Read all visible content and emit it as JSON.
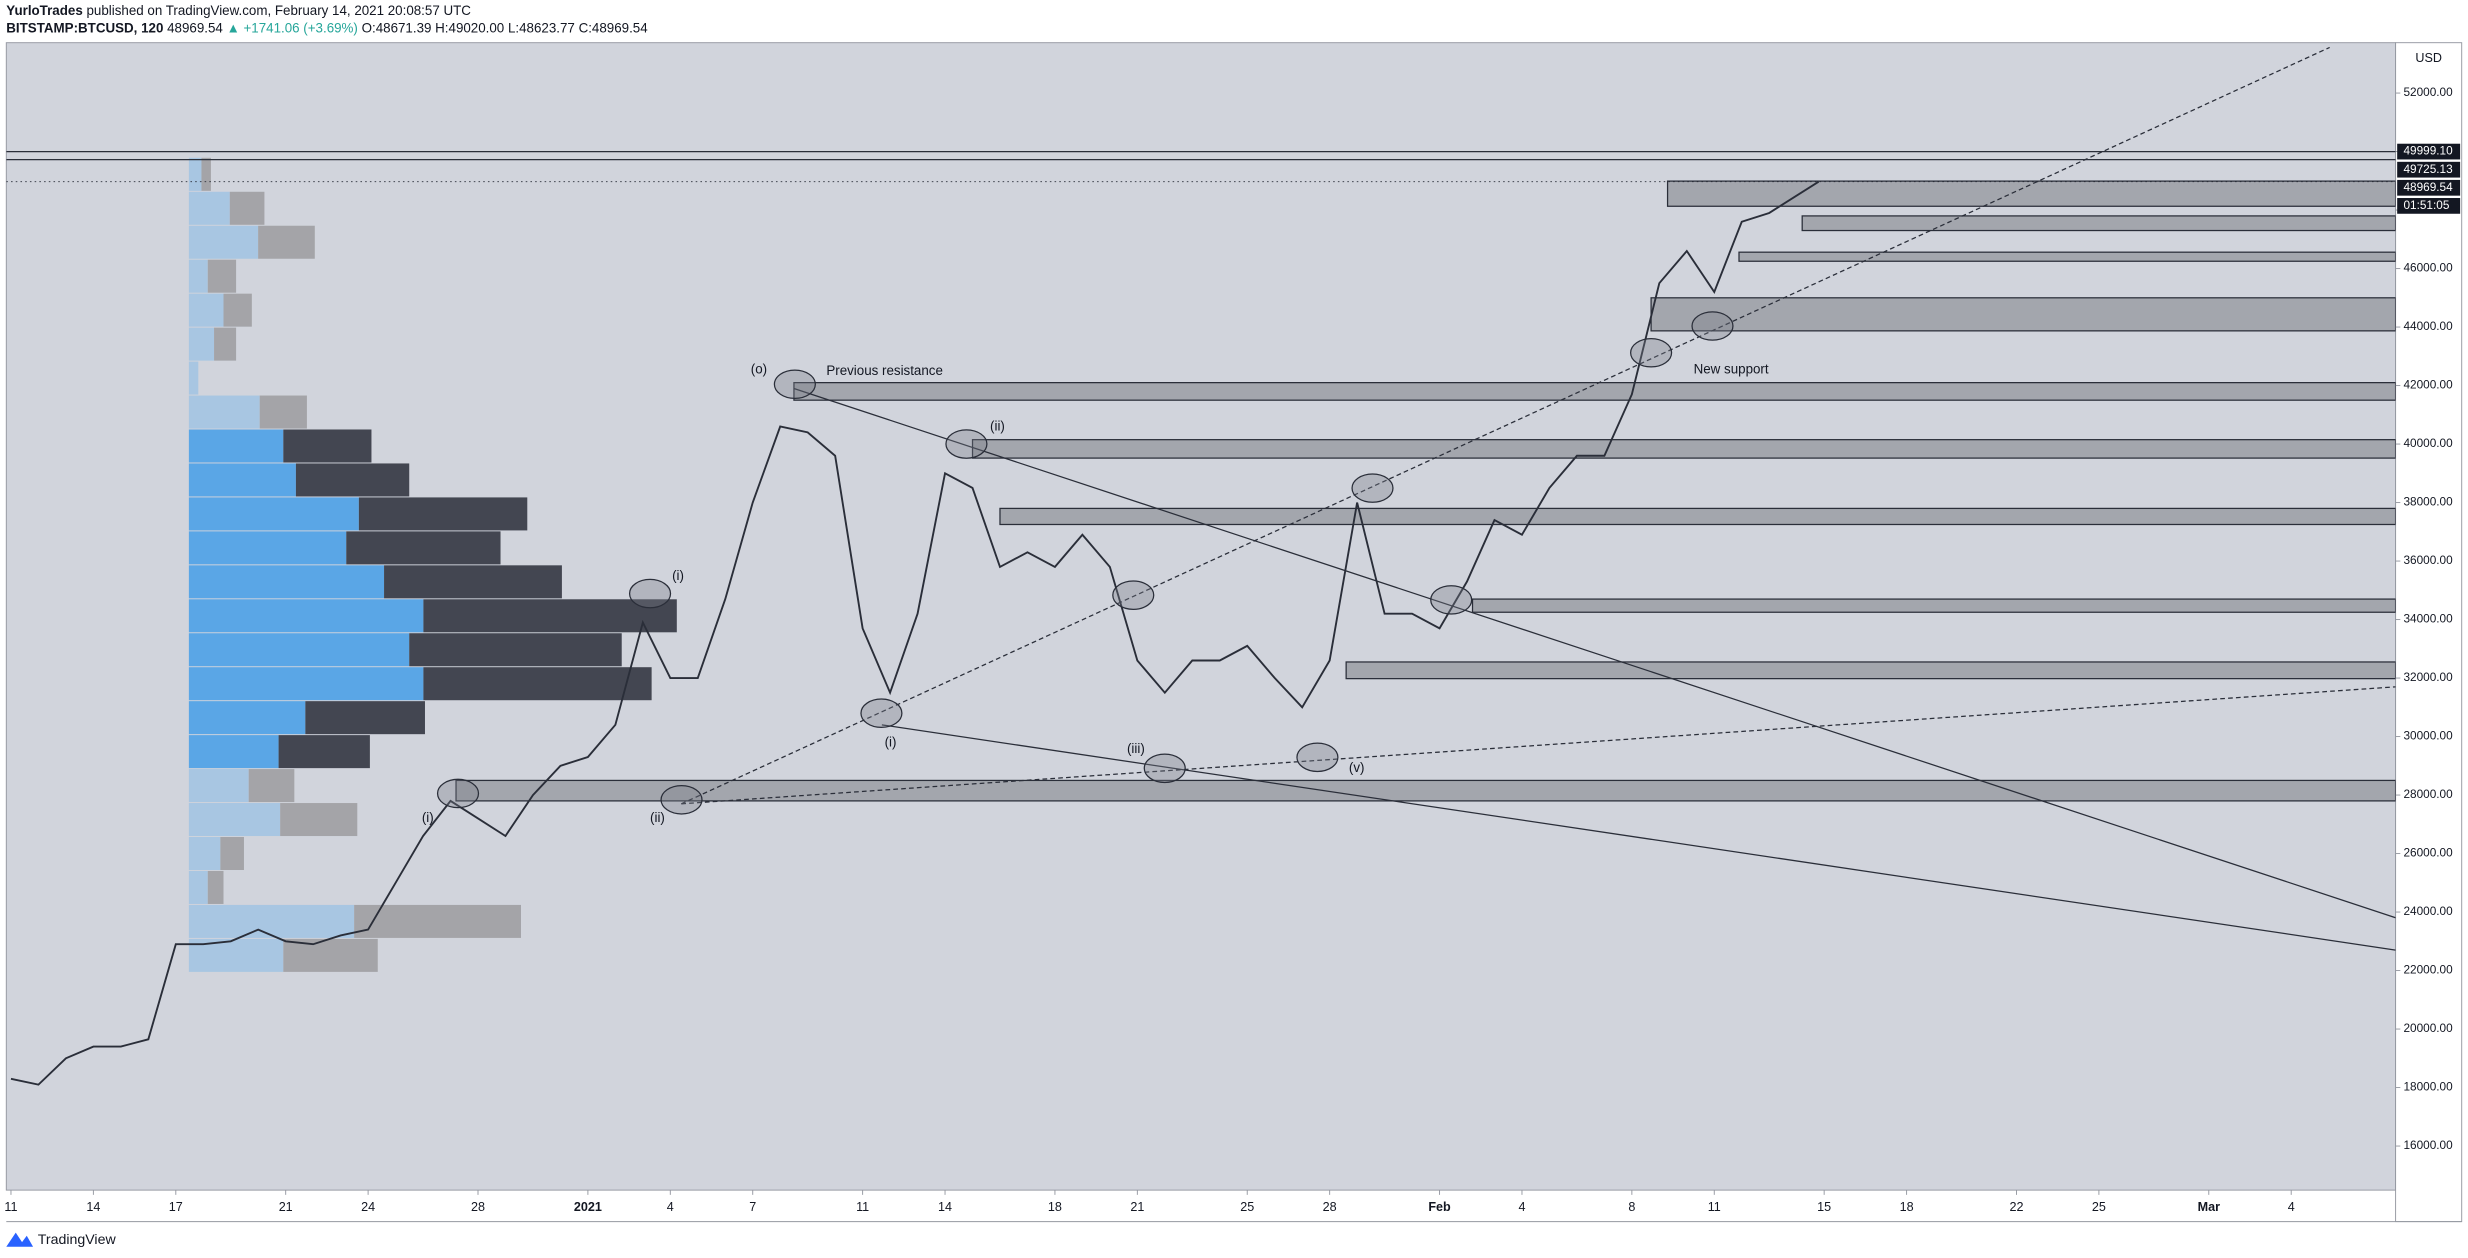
{
  "header": {
    "author": "YurloTrades",
    "published": "published on TradingView.com, February 14, 2021 20:08:57 UTC",
    "symbol": "BITSTAMP:BTCUSD, 120",
    "last": "48969.54",
    "change": "▲ +1741.06 (+3.69%)",
    "open": "O:48671.39",
    "high": "H:49020.00",
    "low": "L:48623.77",
    "close": "C:48969.54"
  },
  "footer": "TradingView",
  "chart_data": {
    "type": "line",
    "color": "#2a2e39",
    "grid": false,
    "x": [
      0,
      1,
      2,
      3,
      4,
      5,
      6,
      7,
      8,
      9,
      10,
      11,
      12,
      13,
      14,
      15,
      16,
      17,
      18,
      19,
      20,
      21,
      22,
      23,
      24,
      25,
      26,
      27,
      28,
      29,
      30,
      31,
      32,
      33,
      34,
      35,
      36,
      37,
      38,
      39,
      40,
      41,
      42,
      43,
      44,
      45,
      46,
      47,
      48,
      49,
      50,
      51,
      52,
      53,
      54,
      55,
      56,
      57,
      58,
      59,
      60,
      61,
      62,
      63,
      64,
      65.8
    ],
    "values": [
      18300,
      18100,
      19000,
      19400,
      19400,
      19650,
      22900,
      22900,
      23000,
      23400,
      23000,
      22900,
      23200,
      23400,
      25000,
      26600,
      27800,
      27200,
      26600,
      28000,
      29000,
      29300,
      30400,
      33900,
      32000,
      32000,
      34700,
      38000,
      40600,
      40400,
      39600,
      33700,
      31500,
      34200,
      39000,
      38500,
      35800,
      36300,
      35800,
      36900,
      35800,
      32600,
      31500,
      32600,
      32600,
      33100,
      32000,
      31000,
      32600,
      38000,
      34200,
      34200,
      33700,
      35300,
      37400,
      36900,
      38500,
      39600,
      39600,
      41700,
      45500,
      46600,
      45200,
      47600,
      47900,
      48969.54
    ],
    "xlim": [
      -0.17,
      86.8
    ],
    "ylim": [
      14493,
      53722
    ],
    "xticks": [
      {
        "value": 0,
        "label": "11"
      },
      {
        "value": 3,
        "label": "14"
      },
      {
        "value": 6,
        "label": "17"
      },
      {
        "value": 10,
        "label": "21"
      },
      {
        "value": 13,
        "label": "24"
      },
      {
        "value": 17,
        "label": "28"
      },
      {
        "value": 21,
        "label": "2021"
      },
      {
        "value": 24,
        "label": "4"
      },
      {
        "value": 27,
        "label": "7"
      },
      {
        "value": 31,
        "label": "11"
      },
      {
        "value": 34,
        "label": "14"
      },
      {
        "value": 38,
        "label": "18"
      },
      {
        "value": 41,
        "label": "21"
      },
      {
        "value": 45,
        "label": "25"
      },
      {
        "value": 48,
        "label": "28"
      },
      {
        "value": 52,
        "label": "Feb"
      },
      {
        "value": 55,
        "label": "4"
      },
      {
        "value": 59,
        "label": "8"
      },
      {
        "value": 62,
        "label": "11"
      },
      {
        "value": 66,
        "label": "15"
      },
      {
        "value": 69,
        "label": "18"
      },
      {
        "value": 73,
        "label": "22"
      },
      {
        "value": 76,
        "label": "25"
      },
      {
        "value": 80,
        "label": "Mar"
      },
      {
        "value": 83,
        "label": "4"
      }
    ],
    "yticks": [
      {
        "value": 16000,
        "label": "16000.00"
      },
      {
        "value": 18000,
        "label": "18000.00"
      },
      {
        "value": 20000,
        "label": "20000.00"
      },
      {
        "value": 22000,
        "label": "22000.00"
      },
      {
        "value": 24000,
        "label": "24000.00"
      },
      {
        "value": 26000,
        "label": "26000.00"
      },
      {
        "value": 28000,
        "label": "28000.00"
      },
      {
        "value": 30000,
        "label": "30000.00"
      },
      {
        "value": 32000,
        "label": "32000.00"
      },
      {
        "value": 34000,
        "label": "34000.00"
      },
      {
        "value": 36000,
        "label": "36000.00"
      },
      {
        "value": 38000,
        "label": "38000.00"
      },
      {
        "value": 40000,
        "label": "40000.00"
      },
      {
        "value": 42000,
        "label": "42000.00"
      },
      {
        "value": 44000,
        "label": "44000.00"
      },
      {
        "value": 46000,
        "label": "46000.00"
      },
      {
        "value": 48000,
        "label": "48000.00"
      },
      {
        "value": 50000,
        "label": "50000.00"
      },
      {
        "value": 52000,
        "label": "52000.00"
      }
    ],
    "y_axis_label": "USD",
    "price_lines": [
      {
        "value": 49999.1,
        "label": "49999.10"
      },
      {
        "value": 49725.13,
        "label": "49725.13"
      },
      {
        "value": 48969.54,
        "label": "48969.54"
      }
    ],
    "countdown": "01:51:05",
    "zones": [
      {
        "low": 27800,
        "high": 28500,
        "from": 16.2
      },
      {
        "low": 31980,
        "high": 32550,
        "from": 48.6
      },
      {
        "low": 34250,
        "high": 34700,
        "from": 53.2
      },
      {
        "low": 37250,
        "high": 37800,
        "from": 36.0
      },
      {
        "low": 39520,
        "high": 40150,
        "from": 35.0
      },
      {
        "low": 41500,
        "high": 42100,
        "from": 28.5
      },
      {
        "low": 43870,
        "high": 45000,
        "from": 59.7
      },
      {
        "low": 46250,
        "high": 46560,
        "from": 62.9
      },
      {
        "low": 47300,
        "high": 47800,
        "from": 65.2
      },
      {
        "low": 48130,
        "high": 48990,
        "from": 60.3
      }
    ],
    "trendlines": [
      {
        "x": [
          28.5,
          86.8
        ],
        "y": [
          41900,
          23806
        ],
        "dashed": false
      },
      {
        "x": [
          31.7,
          86.8
        ],
        "y": [
          30400,
          22700
        ],
        "dashed": false
      },
      {
        "x": [
          24.4,
          84.4
        ],
        "y": [
          27700,
          53560
        ],
        "dashed": true
      },
      {
        "x": [
          24.4,
          86.8
        ],
        "y": [
          27700,
          31700
        ],
        "dashed": true
      }
    ],
    "profile": {
      "low": 21922,
      "step": 1161,
      "value_area": [
        6,
        15
      ],
      "up": [
        60,
        105,
        12,
        20,
        58,
        38,
        57,
        74,
        149,
        140,
        149,
        124,
        100,
        108,
        68,
        60,
        45,
        6,
        16,
        22,
        12,
        44,
        26,
        8
      ],
      "down": [
        60,
        106,
        10,
        15,
        49,
        29,
        58,
        76,
        145,
        135,
        161,
        113,
        98,
        107,
        72,
        56,
        30,
        0,
        14,
        18,
        18,
        36,
        22,
        6
      ]
    },
    "annotations": [
      "Previous resistance",
      "New support",
      "(o)",
      "(i)",
      "(ii)",
      "(iii)",
      "(v)",
      "(i)",
      "(ii)",
      "(i)"
    ]
  }
}
